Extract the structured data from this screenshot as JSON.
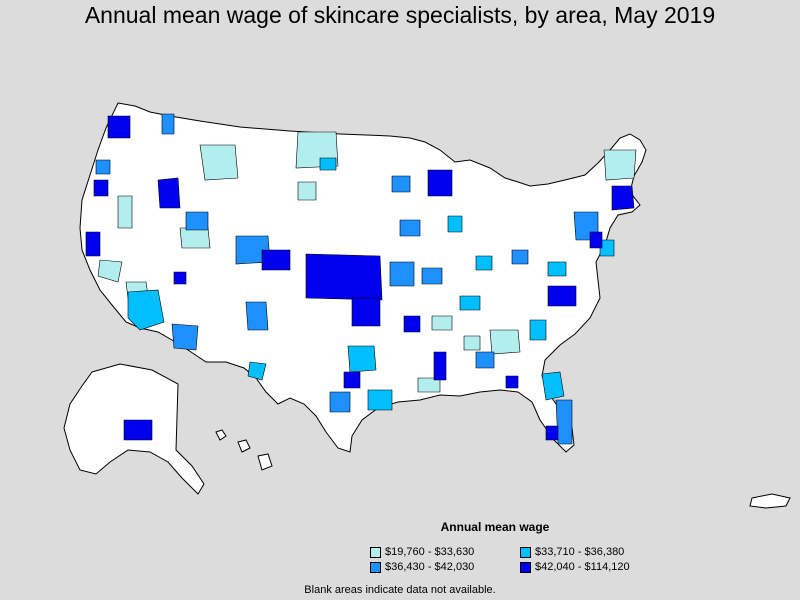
{
  "title": "Annual mean wage of skincare specialists, by area, May 2019",
  "legend": {
    "title": "Annual mean wage",
    "items": [
      {
        "label": "$19,760 - $33,630",
        "color": "#b3eeee"
      },
      {
        "label": "$33,710 - $36,380",
        "color": "#00bfff"
      },
      {
        "label": "$36,430 - $42,030",
        "color": "#1e90ff"
      },
      {
        "label": "$42,040 - $114,120",
        "color": "#0000ee"
      }
    ]
  },
  "footnote": "Blank areas indicate data not available.",
  "colors": {
    "background": "#dcdcdc",
    "land": "#ffffff",
    "border": "#000000"
  }
}
